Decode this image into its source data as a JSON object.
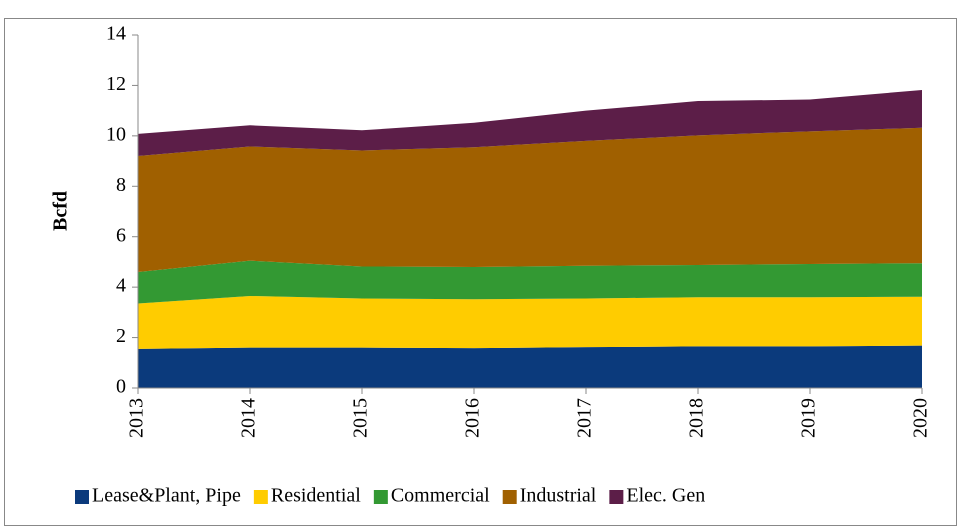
{
  "chart_data": {
    "type": "stacked_area",
    "ylabel": "Bcfd",
    "categories": [
      "2013",
      "2014",
      "2015",
      "2016",
      "2017",
      "2018",
      "2019",
      "2020"
    ],
    "series": [
      {
        "name": "Lease&Plant, Pipe",
        "color": "#0b3a7c",
        "values": [
          1.55,
          1.6,
          1.6,
          1.58,
          1.62,
          1.65,
          1.65,
          1.68
        ]
      },
      {
        "name": "Residential",
        "color": "#ffcc00",
        "values": [
          1.8,
          2.05,
          1.95,
          1.94,
          1.93,
          1.95,
          1.95,
          1.94
        ]
      },
      {
        "name": "Commercial",
        "color": "#339933",
        "values": [
          1.25,
          1.4,
          1.27,
          1.28,
          1.3,
          1.28,
          1.32,
          1.33
        ]
      },
      {
        "name": "Industrial",
        "color": "#a06000",
        "values": [
          4.6,
          4.53,
          4.6,
          4.75,
          4.95,
          5.14,
          5.26,
          5.37
        ]
      },
      {
        "name": "Elec. Gen",
        "color": "#5c1e48",
        "values": [
          0.88,
          0.84,
          0.8,
          0.97,
          1.2,
          1.36,
          1.26,
          1.5
        ]
      }
    ],
    "ylim": [
      0,
      14
    ],
    "yticks": [
      0,
      2,
      4,
      6,
      8,
      10,
      12,
      14
    ],
    "grid": false,
    "legend": "bottom"
  }
}
